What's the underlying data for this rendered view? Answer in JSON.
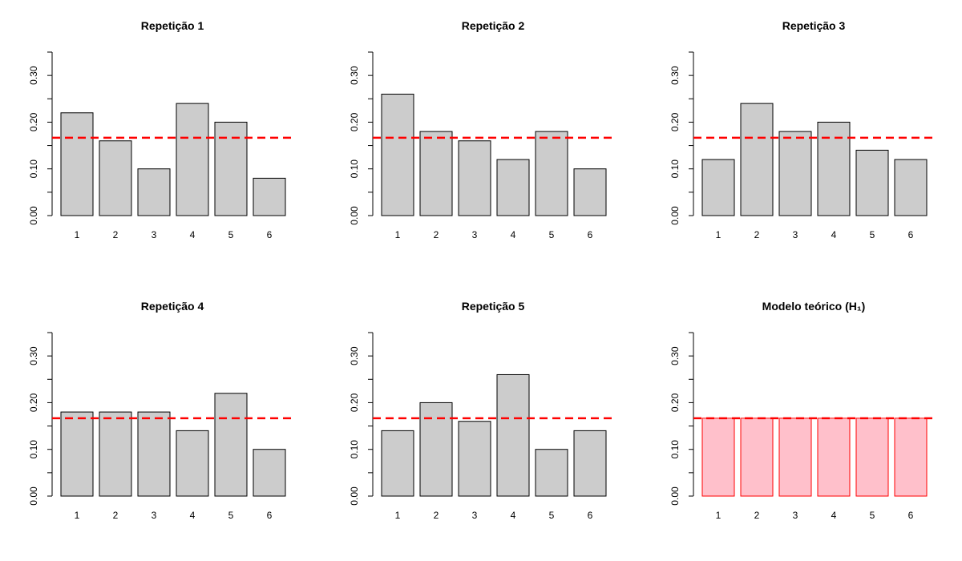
{
  "figure": {
    "type": "bar_panels",
    "colors": {
      "bar_fill": "#cccccc",
      "bar_stroke": "#000000",
      "theory_fill": "#ffc0cb",
      "theory_stroke": "#ff0000",
      "reference_line": "#ff0000",
      "axis": "#000000"
    }
  },
  "chart_data": [
    {
      "type": "bar",
      "title": "Repetição 1",
      "categories": [
        "1",
        "2",
        "3",
        "4",
        "5",
        "6"
      ],
      "values": [
        0.22,
        0.16,
        0.1,
        0.24,
        0.2,
        0.08
      ],
      "ylim": [
        0,
        0.35
      ],
      "yticks": [
        0.0,
        0.05,
        0.1,
        0.15,
        0.2,
        0.25,
        0.3,
        0.35
      ],
      "ytick_labels": [
        {
          "value": 0.0,
          "label": "0.00"
        },
        {
          "value": 0.1,
          "label": "0.10"
        },
        {
          "value": 0.2,
          "label": "0.20"
        },
        {
          "value": 0.3,
          "label": "0.30"
        }
      ],
      "reference_line": 0.1667,
      "style": "observed",
      "xlabel": "",
      "ylabel": ""
    },
    {
      "type": "bar",
      "title": "Repetição 2",
      "categories": [
        "1",
        "2",
        "3",
        "4",
        "5",
        "6"
      ],
      "values": [
        0.26,
        0.18,
        0.16,
        0.12,
        0.18,
        0.1
      ],
      "ylim": [
        0,
        0.35
      ],
      "yticks": [
        0.0,
        0.05,
        0.1,
        0.15,
        0.2,
        0.25,
        0.3,
        0.35
      ],
      "ytick_labels": [
        {
          "value": 0.0,
          "label": "0.00"
        },
        {
          "value": 0.1,
          "label": "0.10"
        },
        {
          "value": 0.2,
          "label": "0.20"
        },
        {
          "value": 0.3,
          "label": "0.30"
        }
      ],
      "reference_line": 0.1667,
      "style": "observed",
      "xlabel": "",
      "ylabel": ""
    },
    {
      "type": "bar",
      "title": "Repetição 3",
      "categories": [
        "1",
        "2",
        "3",
        "4",
        "5",
        "6"
      ],
      "values": [
        0.12,
        0.24,
        0.18,
        0.2,
        0.14,
        0.12
      ],
      "ylim": [
        0,
        0.35
      ],
      "yticks": [
        0.0,
        0.05,
        0.1,
        0.15,
        0.2,
        0.25,
        0.3,
        0.35
      ],
      "ytick_labels": [
        {
          "value": 0.0,
          "label": "0.00"
        },
        {
          "value": 0.1,
          "label": "0.10"
        },
        {
          "value": 0.2,
          "label": "0.20"
        },
        {
          "value": 0.3,
          "label": "0.30"
        }
      ],
      "reference_line": 0.1667,
      "style": "observed",
      "xlabel": "",
      "ylabel": ""
    },
    {
      "type": "bar",
      "title": "Repetição 4",
      "categories": [
        "1",
        "2",
        "3",
        "4",
        "5",
        "6"
      ],
      "values": [
        0.18,
        0.18,
        0.18,
        0.14,
        0.22,
        0.1
      ],
      "ylim": [
        0,
        0.35
      ],
      "yticks": [
        0.0,
        0.05,
        0.1,
        0.15,
        0.2,
        0.25,
        0.3,
        0.35
      ],
      "ytick_labels": [
        {
          "value": 0.0,
          "label": "0.00"
        },
        {
          "value": 0.1,
          "label": "0.10"
        },
        {
          "value": 0.2,
          "label": "0.20"
        },
        {
          "value": 0.3,
          "label": "0.30"
        }
      ],
      "reference_line": 0.1667,
      "style": "observed",
      "xlabel": "",
      "ylabel": ""
    },
    {
      "type": "bar",
      "title": "Repetição 5",
      "categories": [
        "1",
        "2",
        "3",
        "4",
        "5",
        "6"
      ],
      "values": [
        0.14,
        0.2,
        0.16,
        0.26,
        0.1,
        0.14
      ],
      "ylim": [
        0,
        0.35
      ],
      "yticks": [
        0.0,
        0.05,
        0.1,
        0.15,
        0.2,
        0.25,
        0.3,
        0.35
      ],
      "ytick_labels": [
        {
          "value": 0.0,
          "label": "0.00"
        },
        {
          "value": 0.1,
          "label": "0.10"
        },
        {
          "value": 0.2,
          "label": "0.20"
        },
        {
          "value": 0.3,
          "label": "0.30"
        }
      ],
      "reference_line": 0.1667,
      "style": "observed",
      "xlabel": "",
      "ylabel": ""
    },
    {
      "type": "bar",
      "title": "Modelo teórico (H₁)",
      "categories": [
        "1",
        "2",
        "3",
        "4",
        "5",
        "6"
      ],
      "values": [
        0.1667,
        0.1667,
        0.1667,
        0.1667,
        0.1667,
        0.1667
      ],
      "ylim": [
        0,
        0.35
      ],
      "yticks": [
        0.0,
        0.05,
        0.1,
        0.15,
        0.2,
        0.25,
        0.3,
        0.35
      ],
      "ytick_labels": [
        {
          "value": 0.0,
          "label": "0.00"
        },
        {
          "value": 0.1,
          "label": "0.10"
        },
        {
          "value": 0.2,
          "label": "0.20"
        },
        {
          "value": 0.3,
          "label": "0.30"
        }
      ],
      "reference_line": 0.1667,
      "style": "theory",
      "xlabel": "",
      "ylabel": ""
    }
  ]
}
